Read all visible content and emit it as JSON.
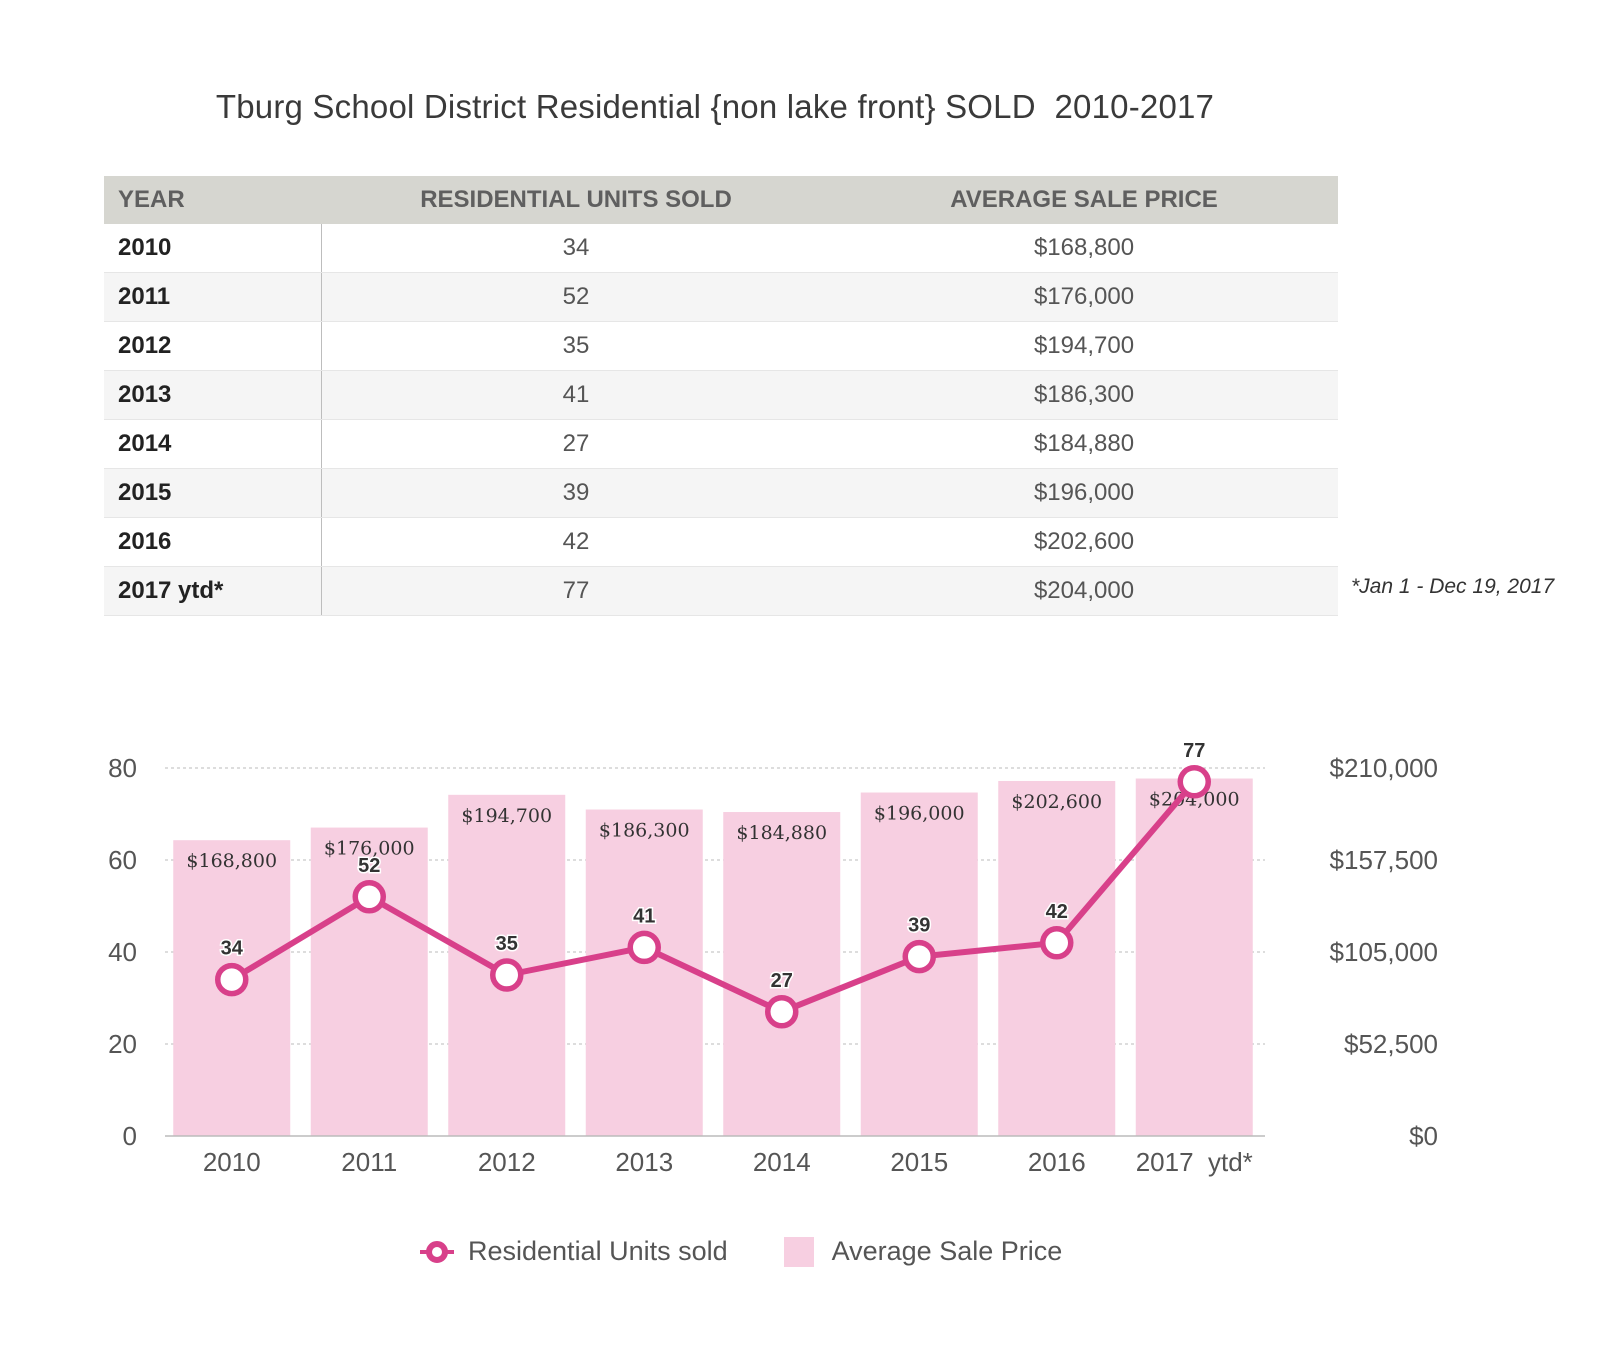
{
  "title": "Tburg School District Residential {non lake front} SOLD  2010-2017",
  "table": {
    "headers": [
      "YEAR",
      "RESIDENTIAL UNITS SOLD",
      "AVERAGE SALE PRICE"
    ],
    "rows": [
      {
        "year": "2010",
        "units": "34",
        "price": "$168,800"
      },
      {
        "year": "2011",
        "units": "52",
        "price": "$176,000"
      },
      {
        "year": "2012",
        "units": "35",
        "price": "$194,700"
      },
      {
        "year": "2013",
        "units": "41",
        "price": "$186,300"
      },
      {
        "year": "2014",
        "units": "27",
        "price": "$184,880"
      },
      {
        "year": "2015",
        "units": "39",
        "price": "$196,000"
      },
      {
        "year": "2016",
        "units": "42",
        "price": "$202,600"
      },
      {
        "year": "2017  ytd*",
        "units": "77",
        "price": "$204,000"
      }
    ],
    "footnote": "*Jan 1 - Dec 19, 2017"
  },
  "chart_data": {
    "type": "bar",
    "categories": [
      "2010",
      "2011",
      "2012",
      "2013",
      "2014",
      "2015",
      "2016",
      "2017  ytd*"
    ],
    "series": [
      {
        "name": "Average Sale Price",
        "type": "bar",
        "axis": "right",
        "values": [
          168800,
          176000,
          194700,
          186300,
          184880,
          196000,
          202600,
          204000
        ],
        "labels": [
          "$168,800",
          "$176,000",
          "$194,700",
          "$186,300",
          "$184,880",
          "$196,000",
          "$202,600",
          "$204,000"
        ]
      },
      {
        "name": "Residential Units sold",
        "type": "line",
        "axis": "left",
        "values": [
          34,
          52,
          35,
          41,
          27,
          39,
          42,
          77
        ]
      }
    ],
    "left_axis": {
      "ylim": [
        0,
        80
      ],
      "ticks": [
        "0",
        "20",
        "40",
        "60",
        "80"
      ]
    },
    "right_axis": {
      "ylim": [
        0,
        210000
      ],
      "ticks": [
        "$0",
        "$52,500",
        "$105,000",
        "$157,500",
        "$210,000"
      ]
    },
    "grid": true,
    "legend": [
      "Residential Units sold",
      "Average Sale Price"
    ],
    "colors": {
      "bar": "#f7cfe1",
      "line": "#d8408a",
      "grid": "#bbbbbb"
    }
  }
}
